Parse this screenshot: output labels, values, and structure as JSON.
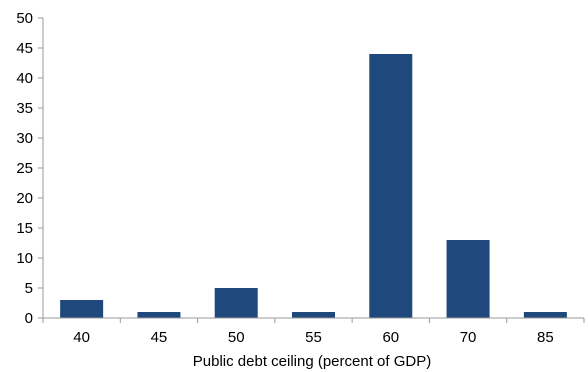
{
  "chart_data": {
    "type": "bar",
    "title": "",
    "xlabel": "Public debt ceiling (percent of GDP)",
    "ylabel": "",
    "categories": [
      "40",
      "45",
      "50",
      "55",
      "60",
      "70",
      "85"
    ],
    "values": [
      3,
      1,
      5,
      1,
      44,
      13,
      1
    ],
    "ylim": [
      0,
      50
    ],
    "yticks": [
      "0",
      "5",
      "10",
      "15",
      "20",
      "25",
      "30",
      "35",
      "40",
      "45",
      "50"
    ],
    "grid": false,
    "legend": "none",
    "colors": {
      "bar": "#1f497d",
      "axis": "#9a9a9a"
    }
  }
}
